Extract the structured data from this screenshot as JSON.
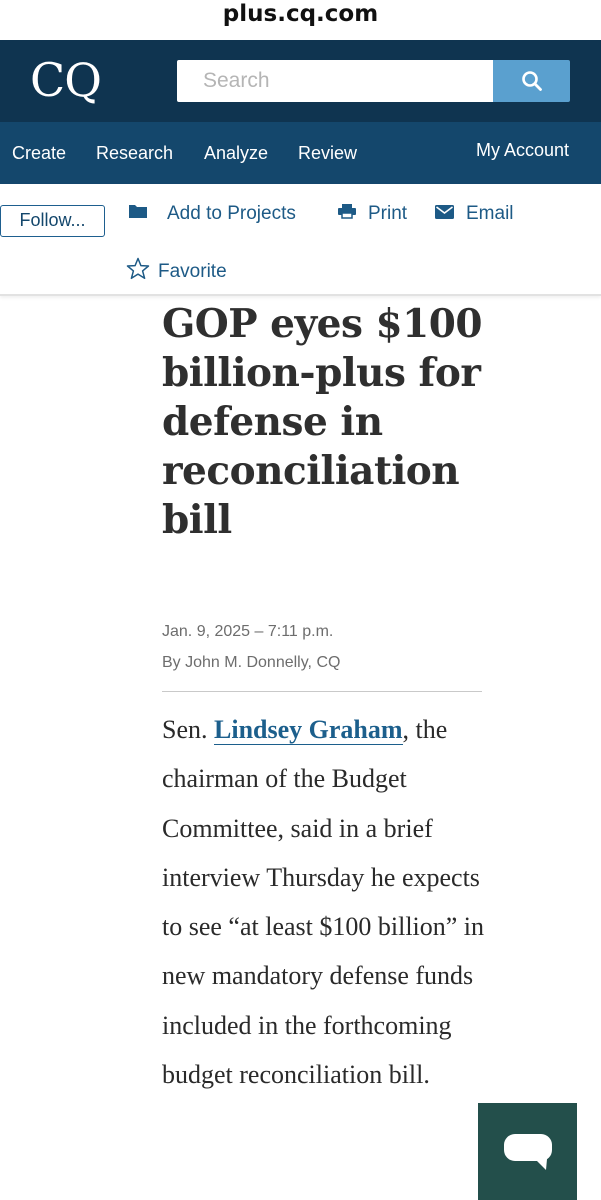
{
  "browser": {
    "url": "plus.cq.com"
  },
  "header": {
    "logo": "CQ",
    "search": {
      "placeholder": "Search",
      "value": ""
    }
  },
  "nav": {
    "items": [
      {
        "label": "Create"
      },
      {
        "label": "Research"
      },
      {
        "label": "Analyze"
      },
      {
        "label": "Review"
      }
    ],
    "account_label": "My Account"
  },
  "toolbar": {
    "follow_label": "Follow...",
    "add_to_projects_label": "Add to Projects",
    "print_label": "Print",
    "email_label": "Email",
    "favorite_label": "Favorite"
  },
  "article": {
    "headline": "GOP eyes $100 billion-plus for defense in reconciliation bill",
    "dateline": "Jan. 9, 2025 – 7:11 p.m.",
    "byline": "By John M. Donnelly, CQ",
    "body_prefix": "Sen. ",
    "body_link": "Lindsey Graham",
    "body_rest": ", the chairman of the Budget Committee, said in a brief interview Thursday he expects to see “at least $100 billion” in new mandatory defense funds included in the forthcoming budget reconciliation bill."
  },
  "icons": {
    "search": "search-icon",
    "folder": "folder-icon",
    "print": "printer-icon",
    "email": "envelope-icon",
    "favorite": "star-outline-icon",
    "chat": "chat-bubble-icon"
  },
  "colors": {
    "header_bg": "#0f3450",
    "nav_bg": "#14476c",
    "search_button": "#5aa0cf",
    "link": "#1c5f8c",
    "chat_widget": "#234f4b"
  }
}
